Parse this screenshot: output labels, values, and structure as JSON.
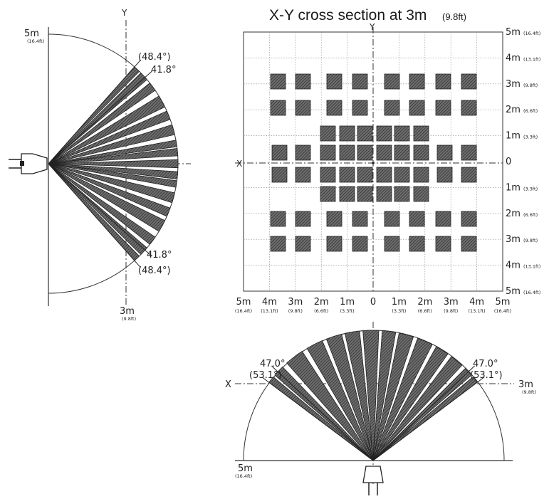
{
  "side_view": {
    "axis_y_label": "Y",
    "range_top": "5m",
    "range_top_sub": "(16.4ft)",
    "range_bottom": "3m",
    "range_bottom_sub": "(9.8ft)",
    "angle_outer_top": "(48.4°)",
    "angle_inner_top": "41.8°",
    "angle_inner_bottom": "41.8°",
    "angle_outer_bottom": "(48.4°)"
  },
  "cross_section": {
    "title": "X-Y cross section at 3m",
    "title_sub": "(9.8ft)",
    "axis_x_label": "X",
    "axis_y_label": "Y",
    "right_labels": [
      {
        "main": "5m",
        "sub": "(16.4ft)"
      },
      {
        "main": "4m",
        "sub": "(13.1ft)"
      },
      {
        "main": "3m",
        "sub": "(9.8ft)"
      },
      {
        "main": "2m",
        "sub": "(6.6ft)"
      },
      {
        "main": "1m",
        "sub": "(3.3ft)"
      },
      {
        "main": "0",
        "sub": ""
      },
      {
        "main": "1m",
        "sub": "(3.3ft)"
      },
      {
        "main": "2m",
        "sub": "(6.6ft)"
      },
      {
        "main": "3m",
        "sub": "(9.8ft)"
      },
      {
        "main": "4m",
        "sub": "(13.1ft)"
      },
      {
        "main": "5m",
        "sub": "(16.4ft)"
      }
    ],
    "bottom_labels": [
      {
        "main": "5m",
        "sub": "(16.4ft)"
      },
      {
        "main": "4m",
        "sub": "(13.1ft)"
      },
      {
        "main": "3m",
        "sub": "(9.8ft)"
      },
      {
        "main": "2m",
        "sub": "(6.6ft)"
      },
      {
        "main": "1m",
        "sub": "(3.3ft)"
      },
      {
        "main": "0",
        "sub": ""
      },
      {
        "main": "1m",
        "sub": "(3.3ft)"
      },
      {
        "main": "2m",
        "sub": "(6.6ft)"
      },
      {
        "main": "3m",
        "sub": "(9.8ft)"
      },
      {
        "main": "4m",
        "sub": "(13.1ft)"
      },
      {
        "main": "5m",
        "sub": "(16.4ft)"
      }
    ]
  },
  "top_view": {
    "axis_x_label": "X",
    "angle_inner_left": "47.0°",
    "angle_outer_left": "(53.1°)",
    "angle_inner_right": "47.0°",
    "angle_outer_right": "(53.1°)",
    "range_right": "3m",
    "range_right_sub": "(9.8ft)",
    "range_left": "5m",
    "range_left_sub": "(16.4ft)"
  },
  "colors": {
    "zone_fill": "#5a5a5a",
    "zone_dark": "#1e1e1e",
    "line": "#333333",
    "grid": "#777777"
  }
}
